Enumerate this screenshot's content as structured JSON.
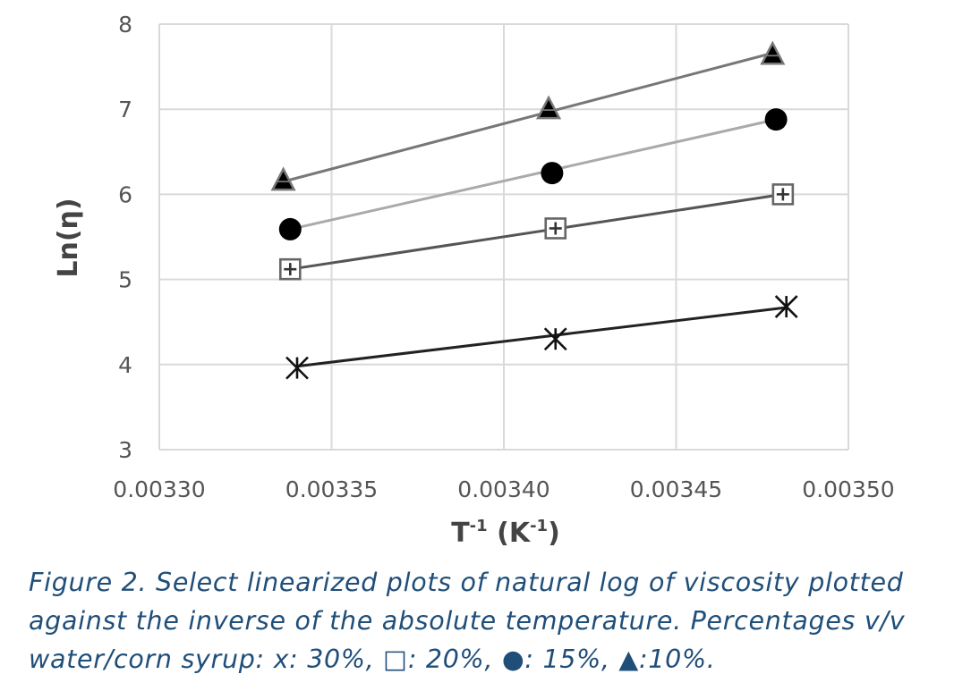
{
  "chart_data": {
    "type": "scatter",
    "title": "",
    "xlabel": "T",
    "xlabel_sup": "-1",
    "xlabel_unit": " (K",
    "xlabel_unit_sup": "-1",
    "xlabel_close": ")",
    "ylabel": "Ln(η)",
    "xlim": [
      0.0033,
      0.0035
    ],
    "ylim": [
      3,
      8
    ],
    "x_ticks": [
      "0.00330",
      "0.00335",
      "0.00340",
      "0.00345",
      "0.00350"
    ],
    "y_ticks": [
      "3",
      "4",
      "5",
      "6",
      "7",
      "8"
    ],
    "grid": true,
    "legend": "none",
    "series": [
      {
        "marker": "asterisk",
        "line_color": "#222222",
        "points": [
          [
            0.00334,
            3.96
          ],
          [
            0.003415,
            4.3
          ],
          [
            0.003482,
            4.68
          ]
        ],
        "trend": [
          [
            0.00334,
            3.98
          ],
          [
            0.003482,
            4.67
          ]
        ]
      },
      {
        "marker": "square-plus",
        "line_color": "#555555",
        "points": [
          [
            0.003338,
            5.12
          ],
          [
            0.003415,
            5.6
          ],
          [
            0.003481,
            6.0
          ]
        ],
        "trend": [
          [
            0.003338,
            5.12
          ],
          [
            0.003481,
            6.0
          ]
        ]
      },
      {
        "marker": "circle",
        "line_color": "#aaaaaa",
        "points": [
          [
            0.003338,
            5.59
          ],
          [
            0.003414,
            6.25
          ],
          [
            0.003479,
            6.88
          ]
        ],
        "trend": [
          [
            0.003338,
            5.59
          ],
          [
            0.003479,
            6.88
          ]
        ]
      },
      {
        "marker": "triangle",
        "line_color": "#777777",
        "points": [
          [
            0.003336,
            6.15
          ],
          [
            0.003413,
            6.99
          ],
          [
            0.003478,
            7.63
          ]
        ],
        "trend": [
          [
            0.003336,
            6.15
          ],
          [
            0.003478,
            7.66
          ]
        ]
      }
    ]
  },
  "caption": "Figure 2. Select linearized plots of natural log of viscosity plotted against the inverse of the absolute temperature. Percentages v/v water/corn syrup: x: 30%, □: 20%, ●: 15%, ▲:10%."
}
